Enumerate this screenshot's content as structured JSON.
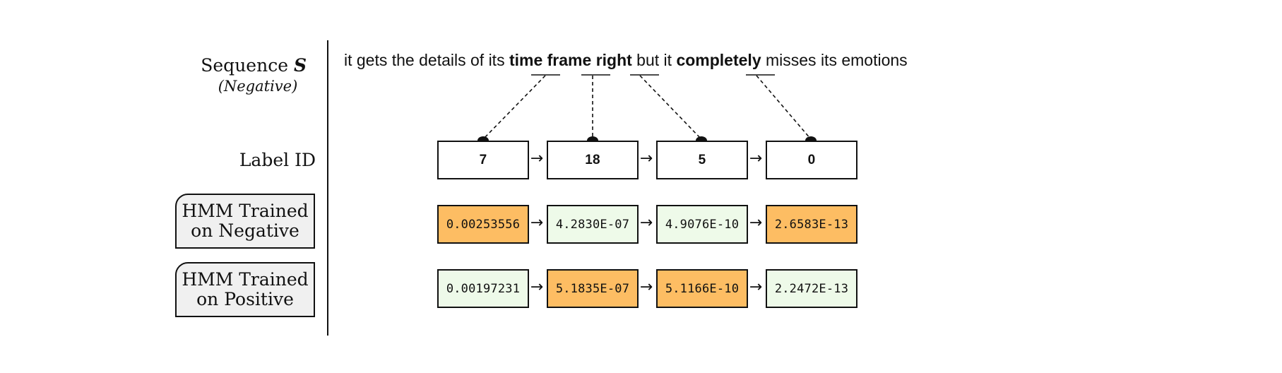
{
  "row_labels": {
    "sequence_word": "Sequence",
    "sequence_symbol": "S",
    "sequence_class": "(Negative)",
    "label_id": "Label ID",
    "hmm_negative_line1": "HMM Trained",
    "hmm_negative_line2": "on Negative",
    "hmm_positive_line1": "HMM Trained",
    "hmm_positive_line2": "on Positive"
  },
  "sentence": {
    "part1": "it gets the details of its ",
    "word1": "time",
    "sp1": " ",
    "word2": "frame",
    "sp2": " ",
    "word3": "right",
    "part2": " but it ",
    "word4": "completely",
    "part3": " misses its emotions"
  },
  "label_ids": [
    "7",
    "18",
    "5",
    "0"
  ],
  "hmm_negative": [
    "0.00253556",
    "4.2830E-07",
    "4.9076E-10",
    "2.6583E-13"
  ],
  "hmm_positive": [
    "0.00197231",
    "5.1835E-07",
    "5.1166E-10",
    "2.2472E-13"
  ],
  "highlight": {
    "hmm_negative": [
      true,
      false,
      false,
      true
    ],
    "hmm_positive": [
      false,
      true,
      true,
      false
    ]
  },
  "arrow_glyph": "→",
  "colors": {
    "higher_probability": "#fdbd63",
    "lower_probability": "#eefae9",
    "line": "#111111"
  }
}
